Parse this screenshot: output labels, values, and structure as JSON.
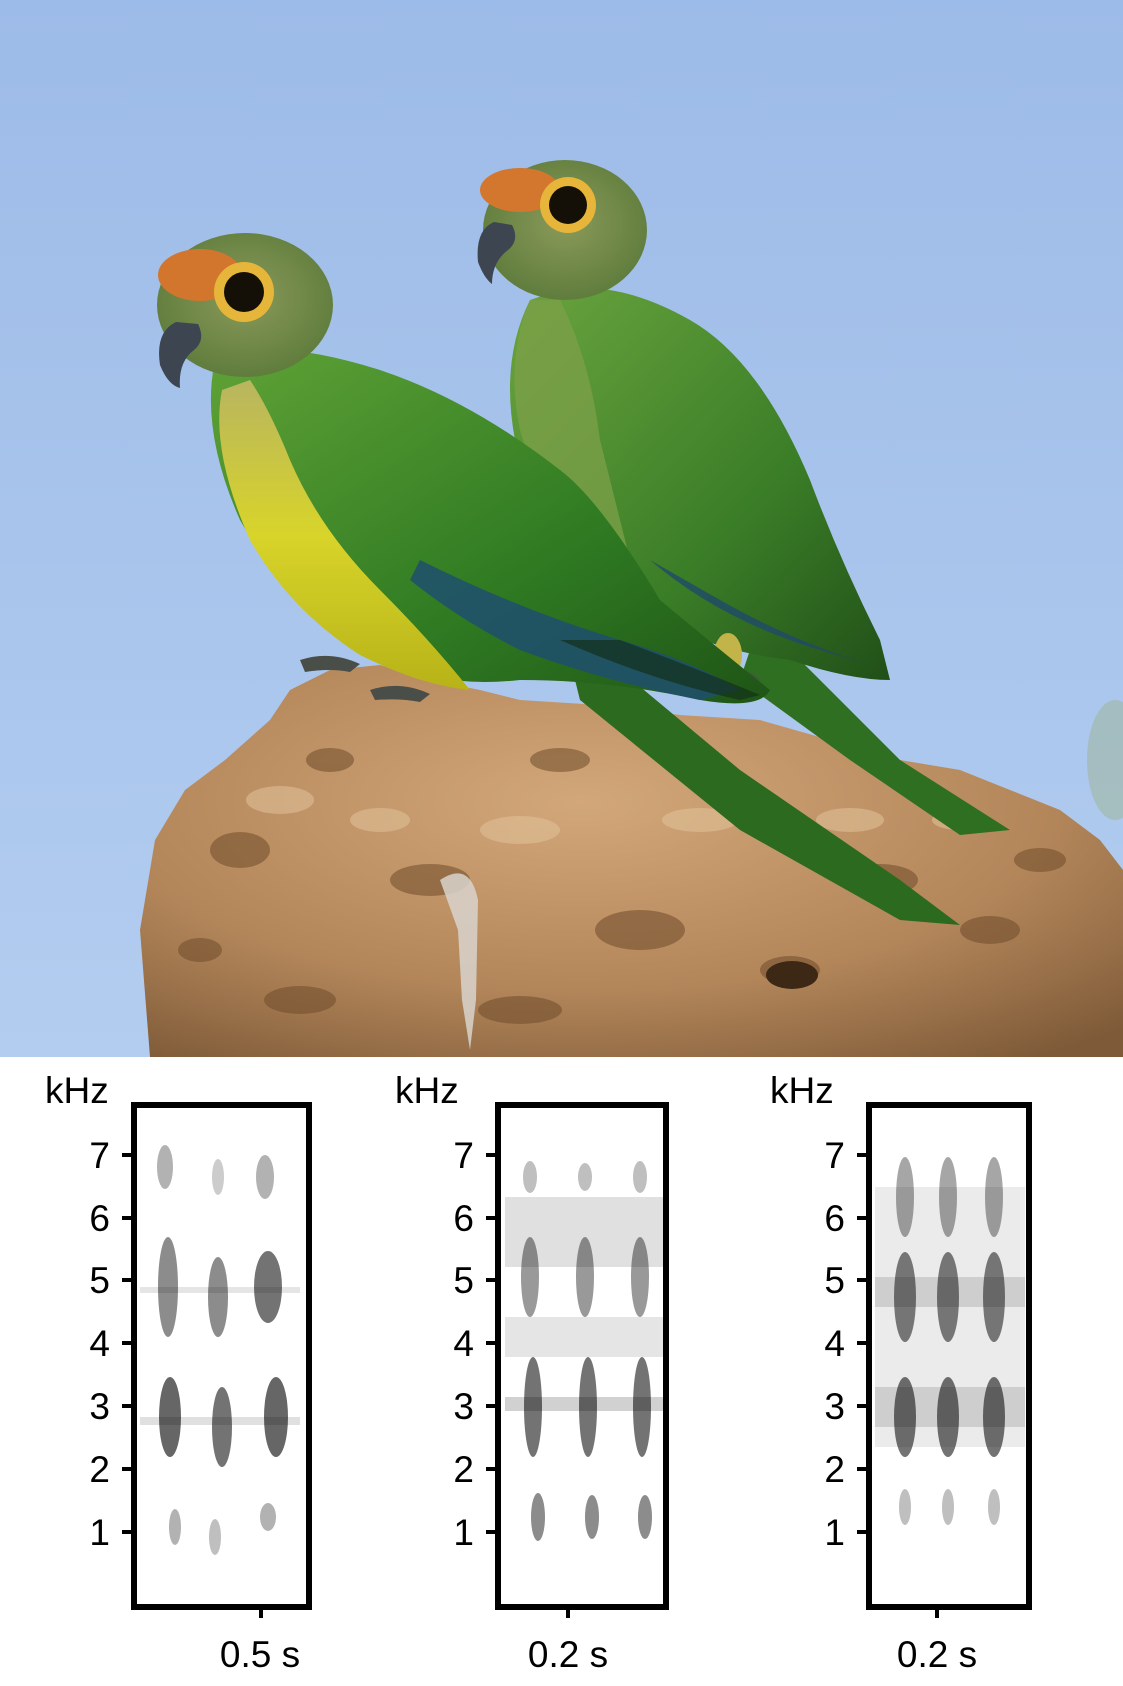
{
  "photo": {
    "subject": "two green parakeets with orange foreheads perched on a termite mound",
    "colors": {
      "sky": "#a8c4ec",
      "plumage_green": "#3f8a2a",
      "belly_yellow": "#d6d02a",
      "forehead_orange": "#d07a30",
      "mound": "#b58a5e"
    }
  },
  "spectrograms": [
    {
      "unit_label": "kHz",
      "y_ticks": [
        "7",
        "6",
        "5",
        "4",
        "3",
        "2",
        "1"
      ],
      "scale_label": "0.5 s"
    },
    {
      "unit_label": "kHz",
      "y_ticks": [
        "7",
        "6",
        "5",
        "4",
        "3",
        "2",
        "1"
      ],
      "scale_label": "0.2 s"
    },
    {
      "unit_label": "kHz",
      "y_ticks": [
        "7",
        "6",
        "5",
        "4",
        "3",
        "2",
        "1"
      ],
      "scale_label": "0.2 s"
    }
  ]
}
